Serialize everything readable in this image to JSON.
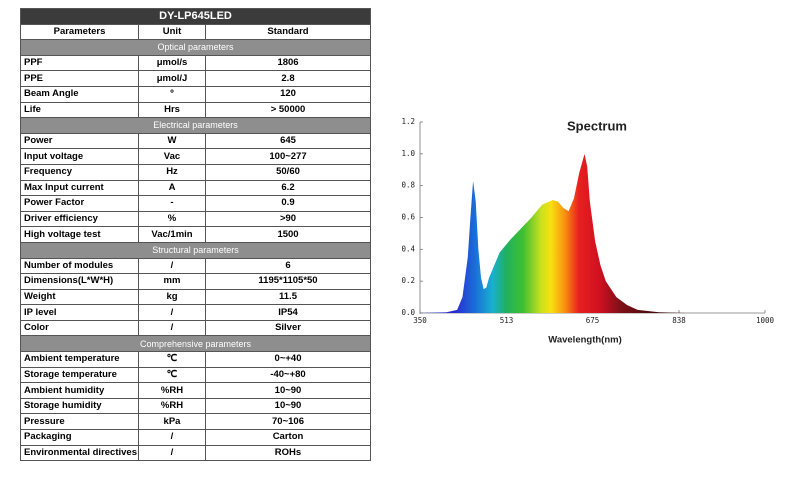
{
  "table": {
    "title": "DY-LP645LED",
    "header": [
      "Parameters",
      "Unit",
      "Standard"
    ],
    "sections": [
      {
        "title": "Optical parameters",
        "rows": [
          [
            "PPF",
            "μmol/s",
            "1806"
          ],
          [
            "PPE",
            "μmol/J",
            "2.8"
          ],
          [
            "Beam Angle",
            "º",
            "120"
          ],
          [
            "Life",
            "Hrs",
            "> 50000"
          ]
        ]
      },
      {
        "title": "Electrical parameters",
        "rows": [
          [
            "Power",
            "W",
            "645"
          ],
          [
            "Input voltage",
            "Vac",
            "100~277"
          ],
          [
            "Frequency",
            "Hz",
            "50/60"
          ],
          [
            "Max Input current",
            "A",
            "6.2"
          ],
          [
            "Power Factor",
            "-",
            "0.9"
          ],
          [
            "Driver efficiency",
            "%",
            ">90"
          ],
          [
            "High voltage test",
            "Vac/1min",
            "1500"
          ]
        ]
      },
      {
        "title": "Structural parameters",
        "rows": [
          [
            "Number of modules",
            "/",
            "6"
          ],
          [
            "Dimensions(L*W*H)",
            "mm",
            "1195*1105*50"
          ],
          [
            "Weight",
            "kg",
            "11.5"
          ],
          [
            "IP level",
            "/",
            "IP54"
          ],
          [
            "Color",
            "/",
            "Silver"
          ]
        ]
      },
      {
        "title": "Comprehensive parameters",
        "rows": [
          [
            "Ambient temperature",
            "℃",
            "0~+40"
          ],
          [
            "Storage temperature",
            "℃",
            "-40~+80"
          ],
          [
            "Ambient humidity",
            "%RH",
            "10~90"
          ],
          [
            "Storage humidity",
            "%RH",
            "10~90"
          ],
          [
            "Pressure",
            "kPa",
            "70~106"
          ],
          [
            "Packaging",
            "/",
            "Carton"
          ],
          [
            "Environmental directives",
            "/",
            "ROHs"
          ]
        ]
      }
    ]
  },
  "chart_data": {
    "type": "area",
    "title": "Spectrum",
    "x_label": "Wavelength(nm)",
    "x": [
      350,
      400,
      420,
      430,
      440,
      445,
      450,
      455,
      460,
      465,
      470,
      475,
      480,
      490,
      500,
      520,
      540,
      560,
      580,
      600,
      610,
      620,
      630,
      640,
      650,
      660,
      665,
      670,
      680,
      690,
      700,
      720,
      740,
      760,
      800,
      850,
      1000
    ],
    "values": [
      0,
      0.005,
      0.02,
      0.1,
      0.35,
      0.6,
      0.83,
      0.7,
      0.4,
      0.22,
      0.15,
      0.16,
      0.22,
      0.3,
      0.38,
      0.46,
      0.53,
      0.6,
      0.68,
      0.71,
      0.7,
      0.66,
      0.64,
      0.72,
      0.88,
      1.0,
      0.92,
      0.7,
      0.45,
      0.3,
      0.2,
      0.1,
      0.05,
      0.02,
      0.005,
      0,
      0
    ],
    "xlim": [
      350,
      1000
    ],
    "xticks": [
      350,
      513,
      675,
      838,
      1000
    ],
    "ylim": [
      0,
      1.2
    ],
    "yticks": [
      {
        "value": 0,
        "label": "0.0"
      },
      0.2,
      0.4,
      0.6,
      0.8,
      {
        "value": 1,
        "label": "1.0"
      },
      1.2
    ]
  }
}
